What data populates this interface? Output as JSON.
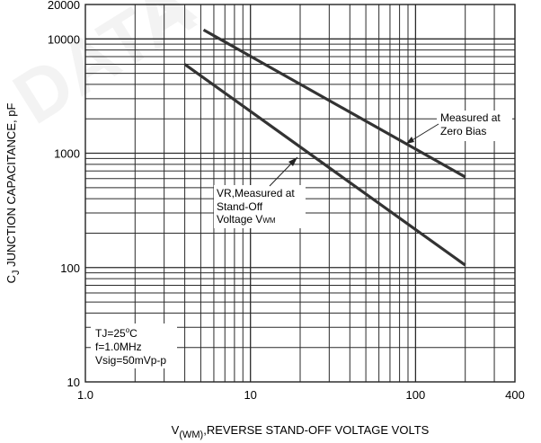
{
  "chart_data": {
    "type": "line",
    "x_scale": "log",
    "y_scale": "log",
    "xlim": [
      1,
      400
    ],
    "ylim": [
      10,
      20000
    ],
    "grid": true,
    "x_ticks": [
      {
        "value": 1,
        "label": "1.0"
      },
      {
        "value": 10,
        "label": "10"
      },
      {
        "value": 100,
        "label": "100"
      },
      {
        "value": 400,
        "label": "400"
      }
    ],
    "y_ticks": [
      {
        "value": 10,
        "label": "10"
      },
      {
        "value": 100,
        "label": "100"
      },
      {
        "value": 1000,
        "label": "1000"
      },
      {
        "value": 10000,
        "label": "10000"
      },
      {
        "value": 20000,
        "label": "20000"
      }
    ],
    "xlabel": {
      "pre": "V",
      "sub": "(WM)",
      "post": ",REVERSE STAND-OFF VOLTAGE VOLTS"
    },
    "ylabel": {
      "pre": "C",
      "sub": "J",
      "post": " JUNCTION CAPACITANCE, pF"
    },
    "series": [
      {
        "id": "zero-bias",
        "x": [
          5.2,
          200
        ],
        "y": [
          12000,
          620
        ]
      },
      {
        "id": "stand-off",
        "x": [
          4,
          200
        ],
        "y": [
          6000,
          105
        ]
      }
    ],
    "annotations": {
      "zero_bias": [
        "Measured at",
        "Zero Bias"
      ],
      "stand_off": {
        "line1": "VR,Measured at",
        "line2": "Stand-Off",
        "line3_pre": "Voltage V",
        "line3_sub": "WM"
      },
      "conditions": {
        "line1_pre": "TJ=25",
        "line1_sup": "o",
        "line1_post": "C",
        "line2": "f=1.0MHz",
        "line3": "Vsig=50mVp-p"
      }
    },
    "colors": {
      "grid": "#2a2a2a",
      "series": "#333333",
      "watermark": "#e6e6e6"
    }
  }
}
